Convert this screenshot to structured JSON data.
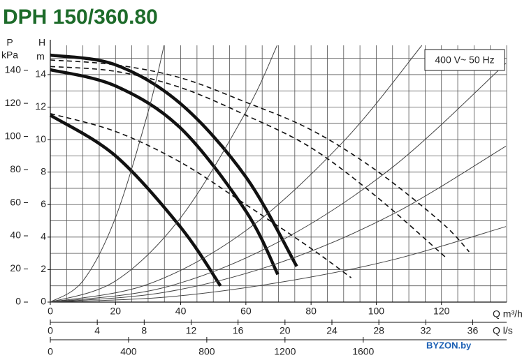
{
  "title": "DPH 150/360.80",
  "legend": "400 V~ 50 Hz",
  "watermark": "BYZON.by",
  "chart_data": {
    "type": "line",
    "y_label": "H",
    "y_unit": "m",
    "y2_label": "P",
    "y2_unit": "kPa",
    "x_label": "Q m³/h",
    "x2_label": "Q l/s",
    "xlim": [
      0,
      140
    ],
    "xticks": [
      0,
      20,
      40,
      60,
      80,
      100,
      120
    ],
    "x2lim": [
      0,
      38.89
    ],
    "x2ticks": [
      0,
      4,
      8,
      12,
      16,
      20,
      24,
      28,
      32,
      36
    ],
    "x3lim": [
      0,
      2333.3
    ],
    "x3ticks": [
      0,
      400,
      800,
      1200,
      1600
    ],
    "ylim": [
      0,
      15.8
    ],
    "yticks": [
      0,
      2,
      4,
      6,
      8,
      10,
      12,
      14
    ],
    "y2lim": [
      0,
      155
    ],
    "y2ticks": [
      0,
      20,
      40,
      60,
      80,
      100,
      120,
      140
    ],
    "xgrid": [
      5,
      10,
      15,
      20,
      25,
      30,
      35,
      40,
      45,
      50,
      55,
      60,
      65,
      70,
      75,
      80,
      85,
      90,
      95,
      100,
      105,
      110,
      115,
      120,
      125,
      130,
      135,
      140
    ],
    "ygrid": [
      1,
      2,
      3,
      4,
      5,
      6,
      7,
      8,
      9,
      10,
      11,
      12,
      13,
      14,
      15
    ],
    "series": [
      {
        "style": "solid",
        "color": "#111",
        "x": [
          0,
          20,
          40,
          60,
          75.6
        ],
        "values": [
          15.2,
          14.6,
          12.2,
          7.7,
          2.2
        ]
      },
      {
        "style": "solid",
        "color": "#111",
        "x": [
          0,
          20,
          40,
          60,
          69.8
        ],
        "values": [
          14.3,
          13.3,
          10.7,
          5.6,
          1.7
        ]
      },
      {
        "style": "solid",
        "color": "#111",
        "x": [
          0,
          20,
          40,
          52.2
        ],
        "values": [
          11.5,
          9.0,
          4.6,
          1.0
        ]
      },
      {
        "style": "dashed",
        "color": "#111",
        "x": [
          0,
          20,
          40,
          60,
          80,
          100,
          120,
          128.5
        ],
        "values": [
          14.9,
          14.6,
          13.8,
          12.3,
          10.6,
          8.1,
          4.9,
          3.1
        ]
      },
      {
        "style": "dashed",
        "color": "#111",
        "x": [
          0,
          20,
          40,
          60,
          80,
          100,
          121.6
        ],
        "values": [
          14.5,
          14.2,
          13.2,
          11.5,
          9.5,
          6.5,
          2.7
        ]
      },
      {
        "style": "dashed",
        "color": "#111",
        "x": [
          0,
          20,
          40,
          60,
          80,
          92.3
        ],
        "values": [
          11.6,
          10.5,
          8.6,
          6.0,
          3.3,
          1.5
        ]
      },
      {
        "style": "thin",
        "color": "#444",
        "x": [
          0,
          10,
          20,
          30,
          34.9
        ],
        "values": [
          0,
          1.3,
          5.2,
          11.7,
          15.8
        ]
      },
      {
        "style": "thin",
        "color": "#444",
        "x": [
          0,
          20,
          40,
          60,
          69.6
        ],
        "values": [
          0,
          1.3,
          5.2,
          11.7,
          15.8
        ]
      },
      {
        "style": "thin",
        "color": "#444",
        "x": [
          0,
          30,
          60,
          90,
          114
        ],
        "values": [
          0,
          1.1,
          4.4,
          9.9,
          15.8
        ]
      },
      {
        "style": "thin",
        "color": "#444",
        "x": [
          0,
          35,
          70,
          105,
          139.8
        ],
        "values": [
          0,
          0.9,
          3.7,
          8.3,
          14.7
        ]
      },
      {
        "style": "thin",
        "color": "#444",
        "x": [
          0,
          35,
          70,
          105,
          139.8
        ],
        "values": [
          0,
          0.6,
          2.4,
          5.4,
          9.6
        ]
      },
      {
        "style": "thin",
        "color": "#444",
        "x": [
          0,
          35,
          70,
          105,
          139.8
        ],
        "values": [
          0,
          0.3,
          1.2,
          2.6,
          4.65
        ]
      }
    ]
  }
}
